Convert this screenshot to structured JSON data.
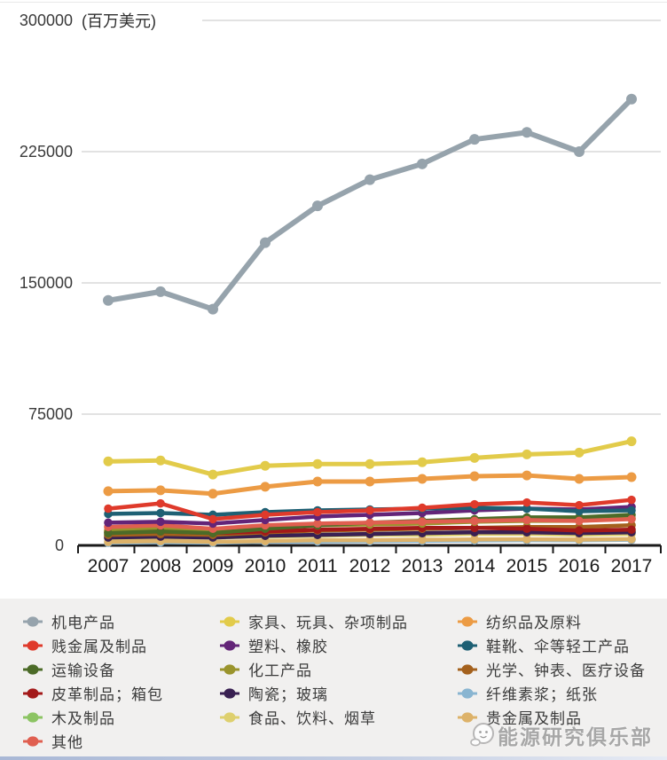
{
  "chart_data": {
    "type": "line",
    "title": "",
    "unit_label": "(百万美元)",
    "xlabel": "",
    "ylabel": "百万美元",
    "x": [
      2007,
      2008,
      2009,
      2010,
      2011,
      2012,
      2013,
      2014,
      2015,
      2016,
      2017
    ],
    "ylim": [
      0,
      300000
    ],
    "yticks": [
      0,
      75000,
      150000,
      225000,
      300000
    ],
    "grid": true,
    "legend_position": "bottom",
    "series": [
      {
        "name": "机电产品",
        "color": "#96a3ac",
        "values": [
          140000,
          145000,
          135000,
          173000,
          194000,
          209000,
          218000,
          232000,
          236000,
          225000,
          255000
        ]
      },
      {
        "name": "贱金属及制品",
        "color": "#df3a2b",
        "values": [
          21000,
          24000,
          15000,
          17500,
          19000,
          20000,
          21500,
          23500,
          24500,
          23000,
          26000
        ]
      },
      {
        "name": "运输设备",
        "color": "#4c6b28",
        "values": [
          7000,
          8000,
          7000,
          9500,
          11500,
          13000,
          14000,
          15000,
          16000,
          16000,
          17500
        ]
      },
      {
        "name": "皮革制品；箱包",
        "color": "#a31919",
        "values": [
          7500,
          8000,
          7000,
          8000,
          9000,
          9500,
          10000,
          10000,
          9500,
          8500,
          9000
        ]
      },
      {
        "name": "木及制品",
        "color": "#8cc463",
        "values": [
          5500,
          5500,
          4500,
          5500,
          6000,
          6500,
          7000,
          7500,
          7500,
          7500,
          8000
        ]
      },
      {
        "name": "其他",
        "color": "#e05f50",
        "values": [
          10500,
          11500,
          9500,
          11500,
          12500,
          13000,
          13500,
          14000,
          14500,
          14000,
          15000
        ]
      },
      {
        "name": "家具、玩具、杂项制品",
        "color": "#e2cb4a",
        "values": [
          48000,
          48500,
          40500,
          45500,
          46500,
          46500,
          47500,
          50000,
          52000,
          53000,
          59500
        ]
      },
      {
        "name": "塑料、橡胶",
        "color": "#632478",
        "values": [
          13000,
          13500,
          12500,
          14500,
          16500,
          17500,
          18500,
          20000,
          21000,
          20500,
          22000
        ]
      },
      {
        "name": "化工产品",
        "color": "#9a942c",
        "values": [
          8500,
          9500,
          8000,
          10000,
          11500,
          12000,
          12500,
          13500,
          14000,
          14000,
          15500
        ]
      },
      {
        "name": "陶瓷；玻璃",
        "color": "#392052",
        "values": [
          4500,
          5000,
          4500,
          5500,
          6000,
          6500,
          7000,
          7500,
          7500,
          7000,
          7500
        ]
      },
      {
        "name": "食品、饮料、烟草",
        "color": "#ded06e",
        "values": [
          4000,
          4500,
          4500,
          5000,
          5500,
          6000,
          6000,
          6500,
          6500,
          6000,
          6500
        ]
      },
      {
        "name": "纺织品及原料",
        "color": "#ec9b44",
        "values": [
          31000,
          31500,
          29500,
          33500,
          36500,
          36500,
          38000,
          39500,
          40000,
          38000,
          39000
        ]
      },
      {
        "name": "鞋靴、伞等轻工产品",
        "color": "#1e6074",
        "values": [
          18000,
          18500,
          17500,
          19000,
          20000,
          20500,
          21000,
          21500,
          21000,
          19500,
          20000
        ]
      },
      {
        "name": "光学、钟表、医疗设备",
        "color": "#a4611d",
        "values": [
          6000,
          6500,
          6000,
          7500,
          8500,
          9000,
          9500,
          10000,
          10500,
          10500,
          11500
        ]
      },
      {
        "name": "纤维素浆；纸张",
        "color": "#89b5d1",
        "values": [
          1500,
          1800,
          1500,
          2000,
          2200,
          2400,
          2600,
          2800,
          3000,
          2900,
          3200
        ]
      },
      {
        "name": "贵金属及制品",
        "color": "#ddb269",
        "values": [
          2000,
          2500,
          2000,
          2500,
          3000,
          3000,
          3200,
          3400,
          3500,
          3300,
          3600
        ]
      }
    ],
    "draw_order": [
      10,
      14,
      15,
      4,
      9,
      13,
      3,
      8,
      2,
      5,
      7,
      12,
      11,
      1,
      6,
      0
    ]
  },
  "legend": {
    "columns": [
      [
        0,
        1,
        2,
        3,
        4,
        5
      ],
      [
        6,
        7,
        8,
        9,
        10
      ],
      [
        11,
        12,
        13,
        14,
        15
      ]
    ]
  },
  "watermark": {
    "text": "能源研究俱乐部"
  }
}
